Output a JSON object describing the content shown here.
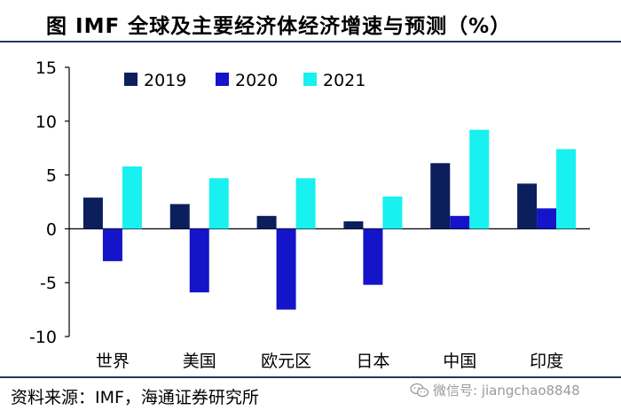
{
  "title": "图  IMF 全球及主要经济体经济增速与预测（%）",
  "source": "资料来源：IMF，海通证券研究所",
  "watermark": {
    "text": "微信号: jiangchao8848",
    "icon": "wechat-icon"
  },
  "colors": {
    "2019": "#0b1f5c",
    "2020": "#1414c8",
    "2021": "#19f0f0",
    "axis": "#000000"
  },
  "chart_data": {
    "type": "bar",
    "title": "IMF 全球及主要经济体经济增速与预测（%）",
    "xlabel": "",
    "ylabel": "",
    "ylim": [
      -10,
      15
    ],
    "yticks": [
      15,
      10,
      5,
      0,
      -5,
      -10
    ],
    "ytick_labels": [
      "15",
      "10",
      "5",
      "0",
      "-5",
      "-10"
    ],
    "grid": false,
    "legend_position": "top-left",
    "categories": [
      "世界",
      "美国",
      "欧元区",
      "日本",
      "中国",
      "印度"
    ],
    "series": [
      {
        "name": "2019",
        "values": [
          2.9,
          2.3,
          1.2,
          0.7,
          6.1,
          4.2
        ]
      },
      {
        "name": "2020",
        "values": [
          -3.0,
          -5.9,
          -7.5,
          -5.2,
          1.2,
          1.9
        ]
      },
      {
        "name": "2021",
        "values": [
          5.8,
          4.7,
          4.7,
          3.0,
          9.2,
          7.4
        ]
      }
    ]
  }
}
